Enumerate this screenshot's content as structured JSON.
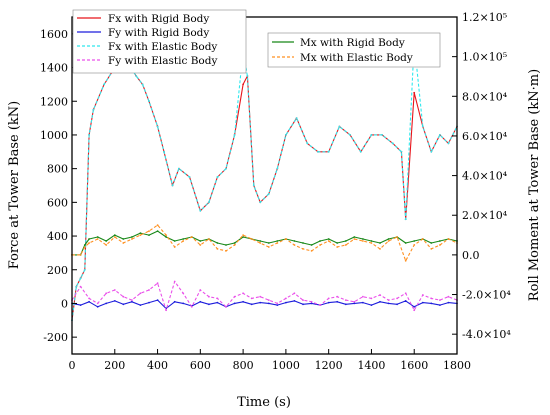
{
  "chart_data": {
    "type": "line",
    "xlabel": "Time (s)",
    "ylabel_left": "Force at Tower Base (kN)",
    "ylabel_right": "Roll Moment at Tower Base (kN·m)",
    "xlim": [
      0,
      1800
    ],
    "ylim_left": [
      -300,
      1700
    ],
    "ylim_right": [
      -50000,
      120000
    ],
    "x_ticks": [
      0,
      200,
      400,
      600,
      800,
      1000,
      1200,
      1400,
      1600,
      1800
    ],
    "y_ticks_left": [
      -200,
      0,
      200,
      400,
      600,
      800,
      1000,
      1200,
      1400,
      1600
    ],
    "y_ticks_right": [
      -40000,
      -20000,
      0,
      20000,
      40000,
      60000,
      80000,
      100000,
      120000
    ],
    "x_tick_labels": [
      "0",
      "200",
      "400",
      "600",
      "800",
      "1000",
      "1200",
      "1400",
      "1600",
      "1800"
    ],
    "y_tick_labels_left": [
      "-200",
      "0",
      "200",
      "400",
      "600",
      "800",
      "1000",
      "1200",
      "1400",
      "1600"
    ],
    "y_tick_labels_right": [
      "-4.0×10⁴",
      "-2.0×10⁴",
      "0.0",
      "2.0×10⁴",
      "4.0×10⁴",
      "6.0×10⁴",
      "8.0×10⁴",
      "1.0×10⁵",
      "1.2×10⁵"
    ],
    "legend_left": [
      "Fx with Rigid Body",
      "Fy with Rigid Body",
      "Fx with Elastic Body",
      "Fy with Elastic Body"
    ],
    "legend_right": [
      "Mx with Rigid Body",
      "Mx with Elastic Body"
    ],
    "series": [
      {
        "name": "Fx with Rigid Body",
        "axis": "left",
        "color": "#e8141b",
        "style": "solid",
        "x": [
          0,
          20,
          40,
          60,
          80,
          100,
          150,
          200,
          250,
          300,
          330,
          360,
          400,
          430,
          470,
          500,
          550,
          600,
          640,
          680,
          720,
          760,
          800,
          820,
          850,
          880,
          920,
          960,
          1000,
          1050,
          1100,
          1150,
          1200,
          1250,
          1300,
          1350,
          1400,
          1450,
          1500,
          1540,
          1560,
          1600,
          1640,
          1680,
          1720,
          1760,
          1800
        ],
        "y": [
          -100,
          100,
          150,
          200,
          1000,
          1150,
          1300,
          1400,
          1450,
          1350,
          1300,
          1200,
          1050,
          900,
          700,
          800,
          750,
          550,
          600,
          750,
          800,
          1000,
          1300,
          1350,
          700,
          600,
          650,
          800,
          1000,
          1100,
          950,
          900,
          900,
          1050,
          1000,
          900,
          1000,
          1000,
          950,
          900,
          500,
          1250,
          1050,
          900,
          1000,
          950,
          1050
        ]
      },
      {
        "name": "Fy with Rigid Body",
        "axis": "left",
        "color": "#1c1cdc",
        "style": "solid",
        "x": [
          0,
          40,
          80,
          120,
          160,
          200,
          240,
          280,
          320,
          360,
          400,
          440,
          480,
          520,
          560,
          600,
          640,
          680,
          720,
          760,
          800,
          840,
          880,
          920,
          960,
          1000,
          1040,
          1080,
          1120,
          1160,
          1200,
          1240,
          1280,
          1320,
          1360,
          1400,
          1440,
          1480,
          1520,
          1560,
          1600,
          1640,
          1680,
          1720,
          1760,
          1800
        ],
        "y": [
          0,
          -10,
          10,
          -20,
          0,
          15,
          -5,
          10,
          -10,
          5,
          20,
          -30,
          10,
          0,
          -15,
          10,
          -5,
          5,
          -20,
          0,
          10,
          -5,
          5,
          0,
          -10,
          5,
          15,
          -5,
          0,
          -10,
          5,
          10,
          -5,
          0,
          5,
          -10,
          10,
          0,
          -5,
          15,
          -20,
          5,
          0,
          -10,
          5,
          0
        ]
      },
      {
        "name": "Fx with Elastic Body",
        "axis": "left",
        "color": "#2ee8ee",
        "style": "dash",
        "x": [
          0,
          20,
          40,
          60,
          80,
          100,
          150,
          200,
          250,
          300,
          330,
          360,
          400,
          430,
          470,
          500,
          550,
          600,
          640,
          680,
          720,
          760,
          800,
          820,
          850,
          880,
          920,
          960,
          1000,
          1050,
          1100,
          1150,
          1200,
          1250,
          1300,
          1350,
          1400,
          1450,
          1500,
          1540,
          1560,
          1600,
          1640,
          1680,
          1720,
          1760,
          1800
        ],
        "y": [
          -100,
          100,
          150,
          200,
          1000,
          1150,
          1300,
          1400,
          1450,
          1350,
          1300,
          1200,
          1050,
          900,
          700,
          800,
          750,
          550,
          600,
          750,
          800,
          1000,
          1500,
          1350,
          700,
          600,
          650,
          800,
          1000,
          1100,
          950,
          900,
          900,
          1050,
          1000,
          900,
          1000,
          1000,
          950,
          900,
          500,
          1550,
          1050,
          900,
          1000,
          950,
          1050
        ]
      },
      {
        "name": "Fy with Elastic Body",
        "axis": "left",
        "color": "#ea50ea",
        "style": "dash",
        "x": [
          0,
          40,
          80,
          120,
          160,
          200,
          240,
          280,
          320,
          360,
          400,
          440,
          480,
          520,
          560,
          600,
          640,
          680,
          720,
          760,
          800,
          840,
          880,
          920,
          960,
          1000,
          1040,
          1080,
          1120,
          1160,
          1200,
          1240,
          1280,
          1320,
          1360,
          1400,
          1440,
          1480,
          1520,
          1560,
          1600,
          1640,
          1680,
          1720,
          1760,
          1800
        ],
        "y": [
          20,
          100,
          30,
          0,
          60,
          80,
          40,
          20,
          60,
          80,
          120,
          -40,
          130,
          60,
          -20,
          80,
          40,
          30,
          -20,
          40,
          60,
          30,
          40,
          20,
          0,
          30,
          60,
          20,
          10,
          -10,
          30,
          40,
          20,
          10,
          40,
          30,
          50,
          20,
          30,
          60,
          -40,
          50,
          30,
          20,
          40,
          20
        ]
      },
      {
        "name": "Mx with Rigid Body",
        "axis": "right",
        "color": "#188818",
        "style": "solid",
        "x": [
          0,
          40,
          60,
          80,
          120,
          160,
          200,
          240,
          280,
          320,
          360,
          400,
          440,
          480,
          520,
          560,
          600,
          640,
          680,
          720,
          760,
          800,
          840,
          880,
          920,
          960,
          1000,
          1040,
          1080,
          1120,
          1160,
          1200,
          1240,
          1280,
          1320,
          1360,
          1400,
          1440,
          1480,
          1520,
          1560,
          1600,
          1640,
          1680,
          1720,
          1760,
          1800
        ],
        "y": [
          0,
          0,
          5000,
          8000,
          9000,
          7000,
          10000,
          8000,
          9000,
          11000,
          10000,
          12000,
          9000,
          7000,
          8000,
          9000,
          7000,
          8000,
          6000,
          5000,
          6000,
          9000,
          8000,
          7000,
          6000,
          7000,
          8000,
          7000,
          6000,
          5000,
          7000,
          8000,
          6000,
          7000,
          9000,
          8000,
          7000,
          6000,
          8000,
          9000,
          6000,
          7000,
          8000,
          6000,
          7000,
          8000,
          7000
        ]
      },
      {
        "name": "Mx with Elastic Body",
        "axis": "right",
        "color": "#ff9020",
        "style": "dash",
        "x": [
          0,
          40,
          60,
          80,
          120,
          160,
          200,
          240,
          280,
          320,
          360,
          400,
          440,
          480,
          520,
          560,
          600,
          640,
          680,
          720,
          760,
          800,
          840,
          880,
          920,
          960,
          1000,
          1040,
          1080,
          1120,
          1160,
          1200,
          1240,
          1280,
          1320,
          1360,
          1400,
          1440,
          1480,
          1520,
          1560,
          1600,
          1640,
          1680,
          1720,
          1760,
          1800
        ],
        "y": [
          0,
          0,
          4000,
          6000,
          8000,
          5000,
          9000,
          6000,
          8000,
          10000,
          12000,
          15000,
          10000,
          4000,
          7000,
          9000,
          5000,
          8000,
          3000,
          2000,
          5000,
          10000,
          8000,
          6000,
          4000,
          6000,
          8000,
          5000,
          3000,
          2000,
          5000,
          7000,
          4000,
          5000,
          8000,
          7000,
          6000,
          3000,
          7000,
          9000,
          -3000,
          5000,
          8000,
          3000,
          5000,
          8000,
          6000
        ]
      }
    ]
  }
}
